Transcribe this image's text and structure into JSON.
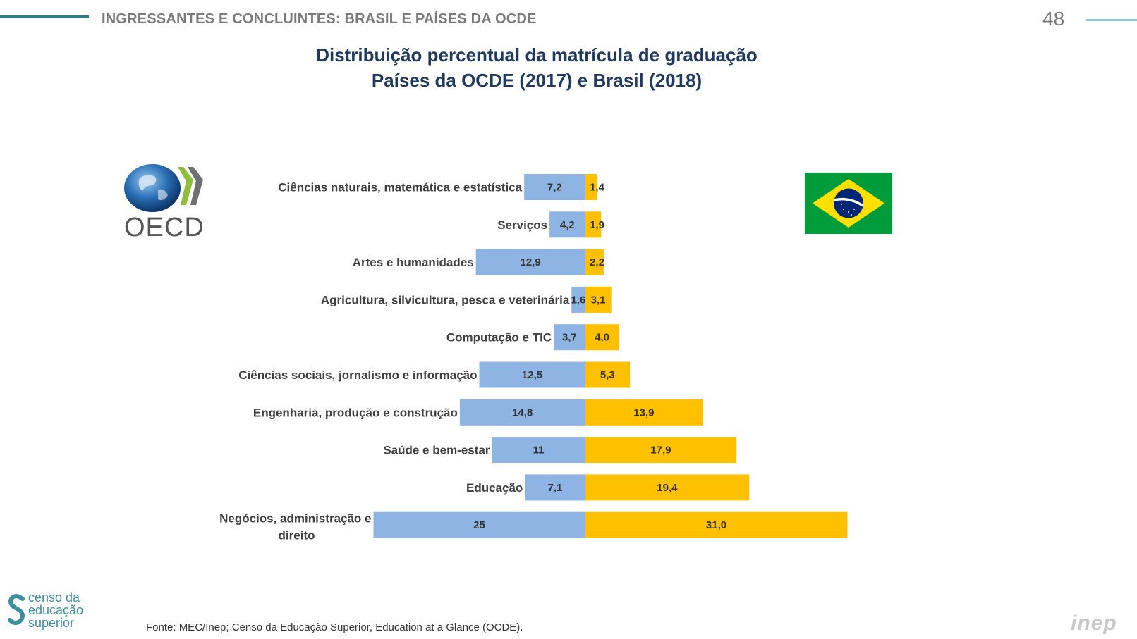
{
  "header": {
    "title": "INGRESSANTES E CONCLUINTES: BRASIL E PAÍSES DA OCDE",
    "page_number": "48"
  },
  "chart_data": {
    "type": "bar",
    "orientation": "horizontal-diverging",
    "title": [
      "Distribuição percentual da matrícula de graduação",
      "Países da OCDE (2017) e Brasil (2018)"
    ],
    "categories": [
      "Ciências naturais, matemática e estatística",
      "Serviços",
      "Artes e humanidades",
      "Agricultura, silvicultura, pesca e veterinária",
      "Computação e TIC",
      "Ciências sociais, jornalismo e informação",
      "Engenharia, produção e construção",
      "Saúde e bem-estar",
      "Educação",
      "Negócios, administração e direito"
    ],
    "series": [
      {
        "name": "OCDE",
        "color": "#8eb4e3",
        "side": "left",
        "values": [
          7.2,
          4.2,
          12.9,
          1.6,
          3.7,
          12.5,
          14.8,
          11,
          7.1,
          25
        ],
        "labels": [
          "7,2",
          "4,2",
          "12,9",
          "1,6",
          "3,7",
          "12,5",
          "14,8",
          "11",
          "7,1",
          "25"
        ]
      },
      {
        "name": "Brasil",
        "color": "#ffc000",
        "side": "right",
        "values": [
          1.4,
          1.9,
          2.2,
          3.1,
          4.0,
          5.3,
          13.9,
          17.9,
          19.4,
          31.0
        ],
        "labels": [
          "1,4",
          "1,9",
          "2,2",
          "3,1",
          "4,0",
          "5,3",
          "13,9",
          "17,9",
          "19,4",
          "31,0"
        ]
      }
    ],
    "xlim": [
      -31,
      31
    ]
  },
  "logos": {
    "oecd_text": "OECD",
    "censo_lines": [
      "censo da",
      "educação",
      "superior"
    ],
    "inep_text": "inep"
  },
  "footer": {
    "source": "Fonte: MEC/Inep; Censo da Educação Superior, Education at a Glance (OCDE)."
  }
}
